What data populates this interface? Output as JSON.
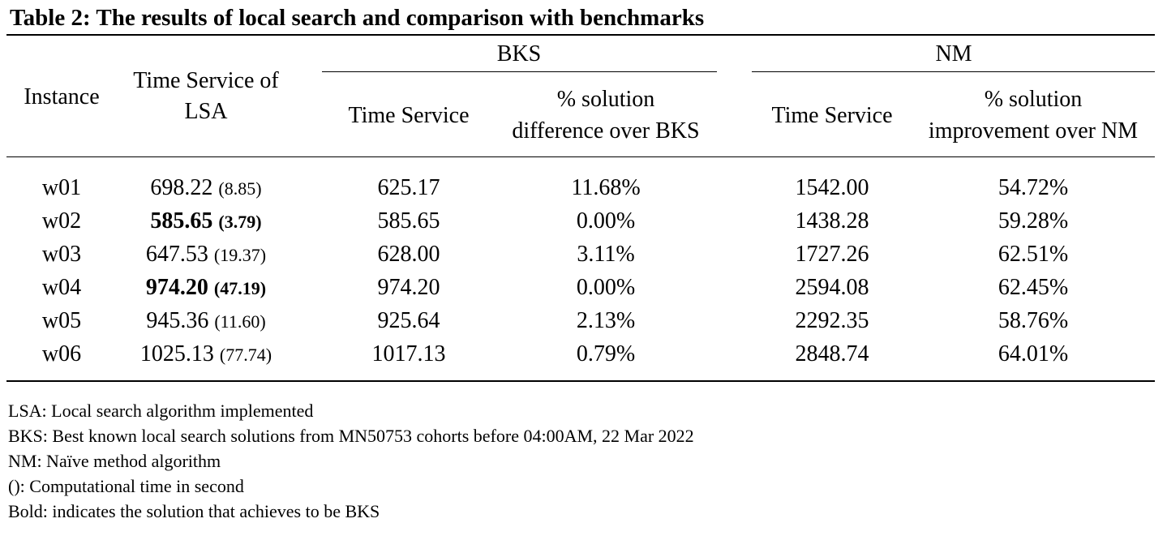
{
  "title": "Table 2: The results of local search and comparison with benchmarks",
  "header": {
    "instance": "Instance",
    "lsa_line1": "Time Service of",
    "lsa_line2": "LSA",
    "bks_group": "BKS",
    "nm_group": "NM",
    "bks_time": "Time Service",
    "bks_diff_line1": "% solution",
    "bks_diff_line2": "difference over BKS",
    "nm_time": "Time Service",
    "nm_impr_line1": "% solution",
    "nm_impr_line2": "improvement over NM"
  },
  "rows": [
    {
      "instance": "w01",
      "lsa": "698.22",
      "lsa_time": "(8.85)",
      "lsa_bold": false,
      "bks_time": "625.17",
      "bks_diff": "11.68%",
      "nm_time": "1542.00",
      "nm_impr": "54.72%"
    },
    {
      "instance": "w02",
      "lsa": "585.65",
      "lsa_time": "(3.79)",
      "lsa_bold": true,
      "bks_time": "585.65",
      "bks_diff": "0.00%",
      "nm_time": "1438.28",
      "nm_impr": "59.28%"
    },
    {
      "instance": "w03",
      "lsa": "647.53",
      "lsa_time": "(19.37)",
      "lsa_bold": false,
      "bks_time": "628.00",
      "bks_diff": "3.11%",
      "nm_time": "1727.26",
      "nm_impr": "62.51%"
    },
    {
      "instance": "w04",
      "lsa": "974.20",
      "lsa_time": "(47.19)",
      "lsa_bold": true,
      "bks_time": "974.20",
      "bks_diff": "0.00%",
      "nm_time": "2594.08",
      "nm_impr": "62.45%"
    },
    {
      "instance": "w05",
      "lsa": "945.36",
      "lsa_time": "(11.60)",
      "lsa_bold": false,
      "bks_time": "925.64",
      "bks_diff": "2.13%",
      "nm_time": "2292.35",
      "nm_impr": "58.76%"
    },
    {
      "instance": "w06",
      "lsa": "1025.13",
      "lsa_time": "(77.74)",
      "lsa_bold": false,
      "bks_time": "1017.13",
      "bks_diff": "0.79%",
      "nm_time": "2848.74",
      "nm_impr": "64.01%"
    }
  ],
  "notes": [
    "LSA: Local search algorithm implemented",
    "BKS: Best known local search solutions from MN50753 cohorts before 04:00AM, 22 Mar 2022",
    "NM: Naïve method algorithm",
    "(): Computational time in second",
    "Bold: indicates the solution that achieves to be BKS"
  ]
}
